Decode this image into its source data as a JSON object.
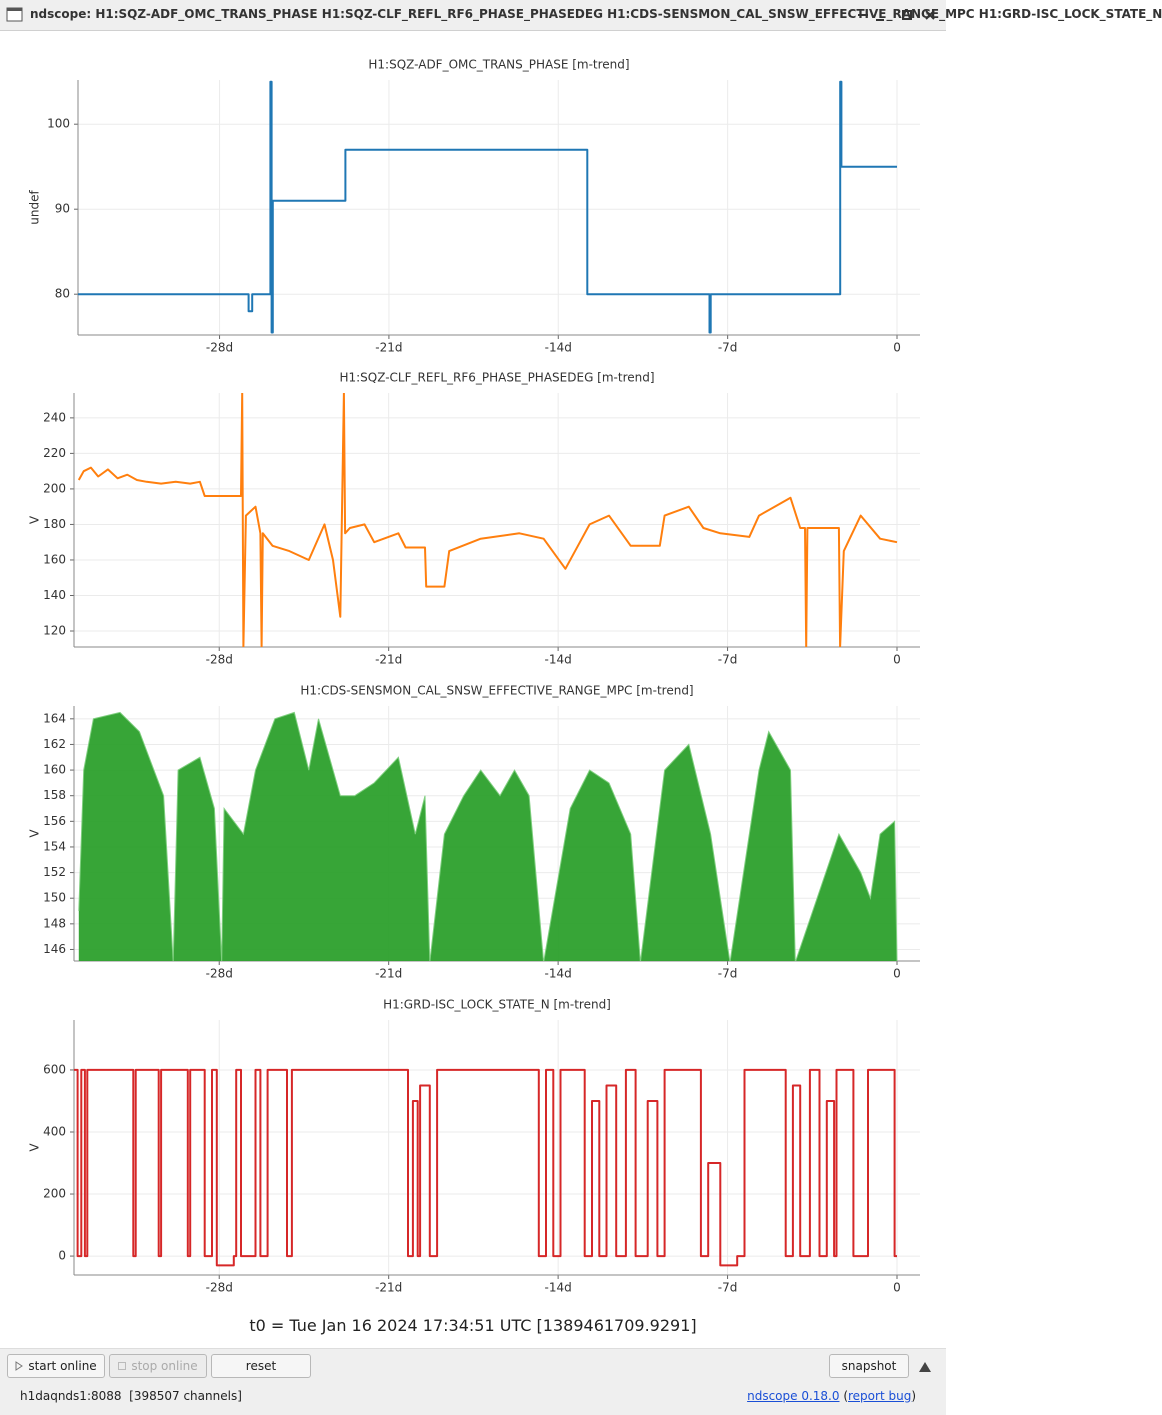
{
  "window": {
    "title": "ndscope: H1:SQZ-ADF_OMC_TRANS_PHASE H1:SQZ-CLF_REFL_RF6_PHASE_PHASEDEG H1:CDS-SENSMON_CAL_SNSW_EFFECTIVE_RANGE_MPC H1:GRD-ISC_LOCK_STATE_N"
  },
  "chart_data": [
    {
      "type": "line",
      "step": true,
      "title": "H1:SQZ-ADF_OMC_TRANS_PHASE [m-trend]",
      "y_label": "undef",
      "color": "#1f77b4",
      "grid": true,
      "x": [
        -33.85,
        -26.8,
        -26.65,
        -25.9,
        -25.85,
        -25.8,
        -22.8,
        -12.8,
        -7.75,
        -7.7,
        -2.35,
        -2.3,
        0
      ],
      "values": [
        80,
        78,
        80,
        105,
        75.5,
        91,
        97,
        80,
        75.5,
        80,
        105,
        95,
        95
      ],
      "xlim": [
        -33.85,
        0.95
      ],
      "ylim": [
        75.2,
        105.2
      ],
      "xticks": [
        {
          "value": -28,
          "label": "-28d"
        },
        {
          "value": -21,
          "label": "-21d"
        },
        {
          "value": -14,
          "label": "-14d"
        },
        {
          "value": -7,
          "label": "-7d"
        },
        0
      ],
      "yticks": [
        80,
        90,
        100
      ]
    },
    {
      "type": "line",
      "title": "H1:SQZ-CLF_REFL_RF6_PHASE_PHASEDEG [m-trend]",
      "y_label": "V",
      "color": "#ff7f0e",
      "grid": true,
      "x": [
        -33.8,
        -33.6,
        -33.3,
        -33.0,
        -32.6,
        -32.2,
        -31.8,
        -31.4,
        -31.0,
        -30.4,
        -29.8,
        -29.2,
        -28.8,
        -28.6,
        -27.9,
        -27.1,
        -27.05,
        -27.0,
        -26.9,
        -26.5,
        -26.3,
        -26.25,
        -26.2,
        -25.8,
        -25.1,
        -24.3,
        -23.65,
        -23.3,
        -23.0,
        -22.85,
        -22.8,
        -22.6,
        -22.0,
        -21.6,
        -20.6,
        -20.3,
        -19.5,
        -19.45,
        -18.7,
        -18.5,
        -17.2,
        -15.6,
        -14.6,
        -13.7,
        -13.1,
        -12.7,
        -11.9,
        -11.0,
        -9.8,
        -9.6,
        -8.6,
        -8.0,
        -7.3,
        -6.1,
        -5.7,
        -4.4,
        -4.0,
        -3.8,
        -3.75,
        -3.7,
        -2.6,
        -2.4,
        -2.35,
        -2.2,
        -1.5,
        -0.7,
        0
      ],
      "values": [
        205,
        210,
        212,
        207,
        211,
        206,
        208,
        205,
        204,
        203,
        204,
        203,
        204,
        196,
        196,
        196,
        254,
        111,
        185,
        190,
        175,
        111,
        175,
        168,
        165,
        160,
        180,
        160,
        128,
        254,
        175,
        178,
        180,
        170,
        175,
        167,
        167,
        145,
        145,
        165,
        172,
        175,
        172,
        155,
        170,
        180,
        185,
        168,
        168,
        185,
        190,
        178,
        175,
        173,
        185,
        195,
        178,
        178,
        111,
        178,
        178,
        178,
        111,
        165,
        185,
        172,
        170
      ],
      "xlim": [
        -34.0,
        0.95
      ],
      "ylim": [
        111,
        254
      ],
      "xticks": [
        {
          "value": -28,
          "label": "-28d"
        },
        {
          "value": -21,
          "label": "-21d"
        },
        {
          "value": -14,
          "label": "-14d"
        },
        {
          "value": -7,
          "label": "-7d"
        },
        0
      ],
      "yticks": [
        120,
        140,
        160,
        180,
        200,
        220,
        240
      ]
    },
    {
      "type": "area",
      "title": "H1:CDS-SENSMON_CAL_SNSW_EFFECTIVE_RANGE_MPC [m-trend]",
      "y_label": "V",
      "color": "#2ca02c",
      "grid": true,
      "x": [
        -33.8,
        -33.6,
        -33.2,
        -32.1,
        -31.3,
        -30.7,
        -30.3,
        -29.9,
        -29.7,
        -28.8,
        -28.2,
        -27.9,
        -27.8,
        -27.0,
        -26.5,
        -25.7,
        -24.9,
        -24.3,
        -23.9,
        -23.0,
        -22.4,
        -21.6,
        -20.6,
        -19.9,
        -19.5,
        -19.3,
        -18.7,
        -17.9,
        -17.2,
        -16.4,
        -15.8,
        -15.2,
        -14.6,
        -13.5,
        -12.7,
        -11.9,
        -11.0,
        -10.6,
        -9.6,
        -8.6,
        -7.7,
        -6.9,
        -5.7,
        -5.3,
        -4.4,
        -4.2,
        -2.4,
        -1.5,
        -1.1,
        -0.7,
        -0.1,
        0
      ],
      "values": [
        149,
        160,
        164,
        164.5,
        163,
        160,
        158,
        145,
        160,
        161,
        157,
        145,
        157,
        155,
        160,
        164,
        164.5,
        160,
        164,
        158,
        158,
        159,
        161,
        155,
        158,
        145,
        155,
        158,
        160,
        158,
        160,
        158,
        145,
        157,
        160,
        159,
        155,
        145,
        160,
        162,
        155,
        145,
        160,
        163,
        160,
        145,
        155,
        152,
        150,
        155,
        156,
        145.1
      ],
      "xlim": [
        -34.0,
        0.95
      ],
      "ylim": [
        145.1,
        165.0
      ],
      "xticks": [
        {
          "value": -28,
          "label": "-28d"
        },
        {
          "value": -21,
          "label": "-21d"
        },
        {
          "value": -14,
          "label": "-14d"
        },
        {
          "value": -7,
          "label": "-7d"
        },
        0
      ],
      "yticks": [
        146,
        148,
        150,
        152,
        154,
        156,
        158,
        160,
        162,
        164
      ]
    },
    {
      "type": "line",
      "step": true,
      "title": "H1:GRD-ISC_LOCK_STATE_N [m-trend]",
      "y_label": "V",
      "color": "#d62728",
      "grid": true,
      "x": [
        -34.0,
        -33.85,
        -33.7,
        -33.55,
        -33.45,
        -31.55,
        -31.45,
        -30.5,
        -30.4,
        -29.3,
        -29.2,
        -28.6,
        -28.3,
        -28.1,
        -27.4,
        -27.3,
        -27.1,
        -26.5,
        -26.3,
        -26.0,
        -25.2,
        -25.0,
        -20.2,
        -20.0,
        -19.8,
        -19.7,
        -19.3,
        -19.0,
        -14.8,
        -14.5,
        -14.2,
        -13.9,
        -12.9,
        -12.6,
        -12.3,
        -12.0,
        -11.6,
        -11.2,
        -10.8,
        -10.3,
        -9.9,
        -9.6,
        -8.1,
        -7.8,
        -7.3,
        -6.6,
        -6.3,
        -6.0,
        -4.6,
        -4.3,
        -4.0,
        -3.6,
        -3.2,
        -2.9,
        -2.6,
        -2.5,
        -1.8,
        -1.2,
        -0.1,
        0
      ],
      "values": [
        600,
        0,
        600,
        0,
        600,
        0,
        600,
        0,
        600,
        0,
        600,
        0,
        600,
        -30,
        0,
        600,
        0,
        600,
        0,
        600,
        0,
        600,
        0,
        500,
        0,
        550,
        0,
        600,
        0,
        600,
        0,
        600,
        0,
        500,
        0,
        550,
        0,
        600,
        0,
        500,
        0,
        600,
        0,
        300,
        -30,
        0,
        600,
        600,
        0,
        550,
        0,
        600,
        0,
        500,
        0,
        600,
        0,
        600,
        0,
        0
      ],
      "xlim": [
        -34.0,
        0.95
      ],
      "ylim": [
        -61,
        761
      ],
      "xticks": [
        {
          "value": -28,
          "label": "-28d"
        },
        {
          "value": -21,
          "label": "-21d"
        },
        {
          "value": -14,
          "label": "-14d"
        },
        {
          "value": -7,
          "label": "-7d"
        },
        0
      ],
      "yticks": [
        0,
        200,
        400,
        600
      ]
    }
  ],
  "t0": "t0 = Tue Jan 16 2024 17:34:51 UTC [1389461709.9291]",
  "toolbar": {
    "start": "start online",
    "stop": "stop online",
    "reset": "reset",
    "snapshot": "snapshot"
  },
  "status": {
    "server": "h1daqnds1:8088  [398507 channels]",
    "version": "ndscope 0.18.0",
    "open": " (",
    "bug": "report bug",
    "close": ")"
  }
}
